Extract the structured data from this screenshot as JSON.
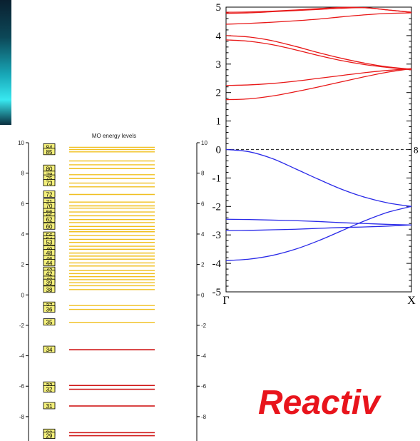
{
  "decor": {
    "left_bar_colors": [
      "#0a2030",
      "#18a8b8",
      "#38e8f0"
    ]
  },
  "colors": {
    "valence": "#2a2ae8",
    "conduction": "#e81818",
    "mo_virtual": "#f0c020",
    "mo_occupied": "#d01818",
    "mo_label_bg": "#f4f07a",
    "reactiv": "#e8141c"
  },
  "chart_data": [
    {
      "type": "line",
      "title": "",
      "xlabel": "",
      "ylabel": "",
      "x_tick_labels": [
        "Γ",
        "X"
      ],
      "ylim": [
        -5,
        5
      ],
      "y_ticks": [
        -5,
        -4,
        -3,
        -2,
        -1,
        0,
        1,
        2,
        3,
        4,
        5
      ],
      "fermi_level": 0,
      "fermi_side_label": "8",
      "x": [
        0,
        0.125,
        0.25,
        0.375,
        0.5,
        0.625,
        0.75,
        0.875,
        1
      ],
      "series": [
        {
          "group": "conduction",
          "values": [
            4.82,
            4.83,
            4.86,
            4.9,
            4.95,
            4.99,
            4.98,
            4.9,
            4.82
          ]
        },
        {
          "group": "conduction",
          "values": [
            4.78,
            4.8,
            4.84,
            4.88,
            4.92,
            4.96,
            4.98,
            4.9,
            4.82
          ]
        },
        {
          "group": "conduction",
          "values": [
            4.4,
            4.43,
            4.47,
            4.52,
            4.58,
            4.66,
            4.73,
            4.78,
            4.8
          ]
        },
        {
          "group": "conduction",
          "values": [
            4.0,
            3.95,
            3.82,
            3.62,
            3.4,
            3.2,
            3.03,
            2.9,
            2.82
          ]
        },
        {
          "group": "conduction",
          "values": [
            3.85,
            3.8,
            3.68,
            3.5,
            3.3,
            3.12,
            2.98,
            2.88,
            2.8
          ]
        },
        {
          "group": "conduction",
          "values": [
            2.25,
            2.27,
            2.32,
            2.4,
            2.5,
            2.6,
            2.7,
            2.78,
            2.84
          ]
        },
        {
          "group": "conduction",
          "values": [
            1.75,
            1.78,
            1.88,
            2.03,
            2.2,
            2.38,
            2.56,
            2.72,
            2.84
          ]
        },
        {
          "group": "valence",
          "values": [
            0.0,
            -0.08,
            -0.32,
            -0.68,
            -1.05,
            -1.4,
            -1.68,
            -1.88,
            -2.0
          ]
        },
        {
          "group": "valence",
          "values": [
            -2.45,
            -2.46,
            -2.48,
            -2.5,
            -2.53,
            -2.57,
            -2.6,
            -2.63,
            -2.65
          ]
        },
        {
          "group": "valence",
          "values": [
            -2.85,
            -2.84,
            -2.82,
            -2.8,
            -2.77,
            -2.74,
            -2.72,
            -2.69,
            -2.65
          ]
        },
        {
          "group": "valence",
          "values": [
            -3.9,
            -3.85,
            -3.72,
            -3.5,
            -3.2,
            -2.85,
            -2.5,
            -2.2,
            -2.0
          ]
        }
      ]
    },
    {
      "type": "levels",
      "title": "MO energy levels",
      "ylim": [
        -9.6,
        10
      ],
      "y_ticks": [
        10,
        8,
        6,
        4,
        2,
        0,
        -2,
        -4,
        -6,
        -8
      ],
      "levels": [
        {
          "e": 9.7,
          "occ": false,
          "label": "84"
        },
        {
          "e": 9.55,
          "occ": false
        },
        {
          "e": 9.4,
          "occ": false,
          "label": "85"
        },
        {
          "e": 8.3,
          "occ": false,
          "label": "80"
        },
        {
          "e": 8.8,
          "occ": false
        },
        {
          "e": 8.55,
          "occ": false
        },
        {
          "e": 7.9,
          "occ": false,
          "label": "78"
        },
        {
          "e": 7.65,
          "occ": false,
          "label": "75"
        },
        {
          "e": 7.35,
          "occ": false,
          "label": "73"
        },
        {
          "e": 7.1,
          "occ": false
        },
        {
          "e": 6.6,
          "occ": false,
          "label": "72"
        },
        {
          "e": 6.1,
          "occ": false,
          "label": "71"
        },
        {
          "e": 5.85,
          "occ": false,
          "label": "70"
        },
        {
          "e": 5.7,
          "occ": false
        },
        {
          "e": 5.45,
          "occ": false,
          "label": "66"
        },
        {
          "e": 5.2,
          "occ": false,
          "label": "65"
        },
        {
          "e": 4.95,
          "occ": false,
          "label": "62"
        },
        {
          "e": 4.75,
          "occ": false
        },
        {
          "e": 4.5,
          "occ": false,
          "label": "60"
        },
        {
          "e": 4.3,
          "occ": false
        },
        {
          "e": 4.15,
          "occ": false
        },
        {
          "e": 3.9,
          "occ": false,
          "label": "56"
        },
        {
          "e": 3.65,
          "occ": false,
          "label": "54"
        },
        {
          "e": 3.45,
          "occ": false,
          "label": "53"
        },
        {
          "e": 3.2,
          "occ": false
        },
        {
          "e": 3.0,
          "occ": false,
          "label": "49"
        },
        {
          "e": 2.75,
          "occ": false,
          "label": "48"
        },
        {
          "e": 2.55,
          "occ": false
        },
        {
          "e": 2.35,
          "occ": false,
          "label": "46"
        },
        {
          "e": 2.1,
          "occ": false,
          "label": "44"
        },
        {
          "e": 1.9,
          "occ": false
        },
        {
          "e": 1.6,
          "occ": false,
          "label": "43"
        },
        {
          "e": 1.4,
          "occ": false,
          "label": "42"
        },
        {
          "e": 1.2,
          "occ": false
        },
        {
          "e": 1.0,
          "occ": false,
          "label": "40"
        },
        {
          "e": 0.8,
          "occ": false,
          "label": "39"
        },
        {
          "e": 0.6,
          "occ": false
        },
        {
          "e": 0.35,
          "occ": false,
          "label": "38"
        },
        {
          "e": -0.7,
          "occ": false,
          "label": "37"
        },
        {
          "e": -0.95,
          "occ": false,
          "label": "36"
        },
        {
          "e": -1.8,
          "occ": false,
          "label": "35"
        },
        {
          "e": -3.6,
          "occ": true,
          "label": "34"
        },
        {
          "e": -5.95,
          "occ": true,
          "label": "33"
        },
        {
          "e": -6.2,
          "occ": true,
          "label": "32"
        },
        {
          "e": -7.3,
          "occ": true,
          "label": "31"
        },
        {
          "e": -9.05,
          "occ": true,
          "label": "30"
        },
        {
          "e": -9.25,
          "occ": true,
          "label": "29"
        }
      ]
    }
  ],
  "footer_text": "Reactiv"
}
